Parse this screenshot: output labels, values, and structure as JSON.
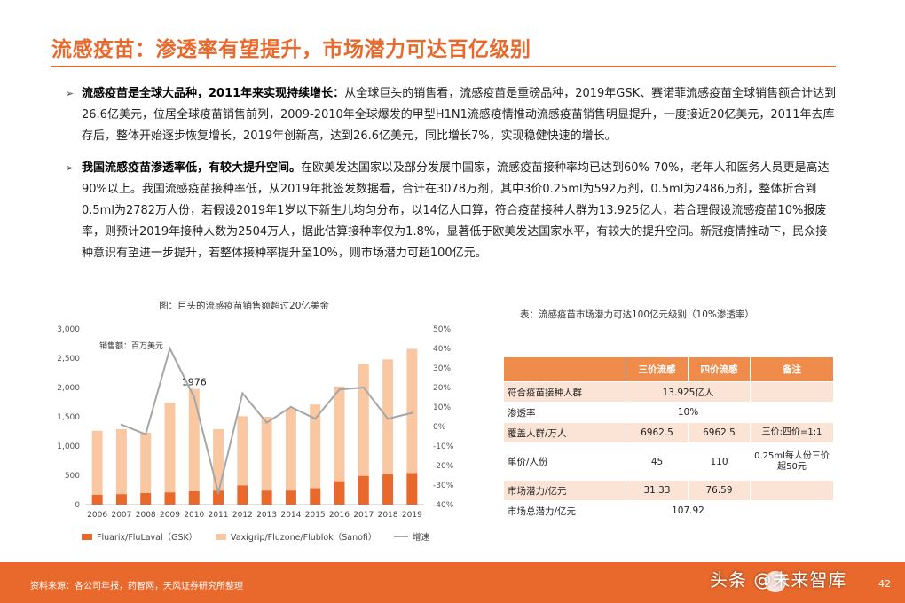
{
  "title": "流感疫苗：渗透率有望提升，市场潜力可达百亿级别",
  "bullets": [
    {
      "bold": "流感疫苗是全球大品种，2011年来实现持续增长：",
      "text": "从全球巨头的销售看，流感疫苗是重磅品种，2019年GSK、赛诺菲流感疫苗全球销售额合计达到26.6亿美元，位居全球疫苗销售前列，2009-2010年全球爆发的甲型H1N1流感疫情推动流感疫苗销售明显提升，一度接近20亿美元，2011年去库存后，整体开始逐步恢复增长，2019年创新高，达到26.6亿美元，同比增长7%，实现稳健快速的增长。"
    },
    {
      "bold": "我国流感疫苗渗透率低，有较大提升空间。",
      "text": "在欧美发达国家以及部分发展中国家，流感疫苗接种率均已达到60%-70%，老年人和医务人员更是高达90%以上。我国流感疫苗接种率低，从2019年批签发数据看，合计在3078万剂，其中3价0.25ml为592万剂，0.5ml为2486万剂，整体折合到0.5ml为2782万人份，若假设2019年1岁以下新生儿均匀分布，以14亿人口算，符合疫苗接种人群为13.925亿人，若合理假设流感疫苗10%报废率，则预计2019年接种人数为2504万人，据此估算接种率仅为1.8%，显著低于欧美发达国家水平，有较大的提升空间。新冠疫情推动下，民众接种意识有望进一步提升，若整体接种率提升至10%，则市场潜力可超100亿元。"
    }
  ],
  "chart_title": "图：巨头的流感疫苗销售额超过20亿美金",
  "chart_data": {
    "type": "bar",
    "categories": [
      "2006",
      "2007",
      "2008",
      "2009",
      "2010",
      "2011",
      "2012",
      "2013",
      "2014",
      "2015",
      "2016",
      "2017",
      "2018",
      "2019"
    ],
    "unit_label": "销售额：百万美元",
    "series": [
      {
        "name": "Fluarix/FluLaval（GSK）",
        "kind": "bar",
        "color": "#E9692C",
        "values": [
          170,
          180,
          200,
          210,
          230,
          240,
          330,
          240,
          240,
          280,
          400,
          490,
          520,
          540
        ]
      },
      {
        "name": "Vaxigrip/Fluzone/Flublok（Sanofi）",
        "kind": "bar",
        "color": "#F9C8A3",
        "values": [
          1090,
          1110,
          1030,
          1530,
          1746,
          1050,
          1180,
          1260,
          1400,
          1430,
          1620,
          1910,
          1960,
          2120
        ]
      },
      {
        "name": "增速",
        "kind": "line",
        "axis": "right",
        "color": "#A6A6A6",
        "values": [
          null,
          1,
          -4,
          40,
          15,
          -34,
          17,
          2,
          10,
          4,
          19,
          20,
          4,
          7
        ]
      }
    ],
    "annotation": {
      "category": "2010",
      "text": "1976"
    },
    "ylim": [
      0,
      3000
    ],
    "yticks": [
      "0",
      "500",
      "1,000",
      "1,500",
      "2,000",
      "2,500",
      "3,000"
    ],
    "y2lim": [
      -40,
      50
    ],
    "y2ticks": [
      "-40%",
      "-30%",
      "-20%",
      "-10%",
      "0%",
      "10%",
      "20%",
      "30%",
      "40%",
      "50%"
    ],
    "grid": false,
    "legend": "bottom"
  },
  "table_title": "表：流感疫苗市场潜力可达100亿元级别（10%渗透率）",
  "table": {
    "header": [
      "",
      "三价流感",
      "四价流感",
      "备注"
    ],
    "rows": [
      {
        "label": "符合疫苗接种人群",
        "merged": "13.925亿人"
      },
      {
        "label": "渗透率",
        "merged": "10%"
      },
      {
        "label": "覆盖人群/万人",
        "v3": "6962.5",
        "v4": "6962.5",
        "note": "三价:四价=1:1"
      },
      {
        "label": "单价/人份",
        "v3": "45",
        "v4": "110",
        "note": "0.25ml每人份三价超50元"
      },
      {
        "label": "市场潜力/亿元",
        "v3": "31.33",
        "v4": "76.59",
        "note": ""
      },
      {
        "label": "市场总潜力/亿元",
        "merged": "107.92"
      }
    ]
  },
  "footer": {
    "source": "资料来源：各公司年报，药智网，天风证券研究所整理",
    "watermark": "头条 @未来智库",
    "page": "42"
  }
}
